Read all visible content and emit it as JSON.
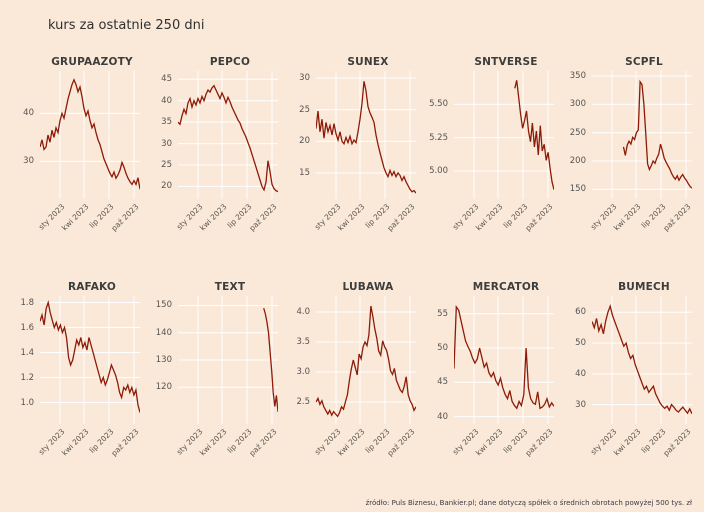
{
  "page": {
    "title": "kurs za ostatnie 250 dni",
    "footer": "źródło: Puls Biznesu, Bankier.pl; dane dotyczą spółek o średnich obrotach powyżej 500 tys. zł",
    "colors": {
      "background": "#FAE9D9",
      "line": "#8E1A08",
      "grid": "#FFFFFF",
      "title_text": "#30302F",
      "axis_text": "#555352"
    }
  },
  "chart_data": [
    {
      "type": "line",
      "title": "GRUPAAZOTY",
      "ylim": [
        23,
        48
      ],
      "yticks": [
        {
          "v": 30,
          "label": "30"
        },
        {
          "v": 40,
          "label": "40"
        }
      ],
      "xticks": [
        {
          "pos": 0.2,
          "label": "sty 2023"
        },
        {
          "pos": 0.44,
          "label": "kwi 2023"
        },
        {
          "pos": 0.69,
          "label": "lip 2023"
        },
        {
          "pos": 0.94,
          "label": "paź 2023"
        }
      ],
      "values": [
        33,
        34.5,
        32.5,
        33,
        35.5,
        34,
        36.5,
        35,
        37,
        36,
        38.5,
        40,
        39,
        41,
        43,
        44.5,
        46,
        47,
        46,
        44.5,
        45.5,
        43.5,
        41,
        39.5,
        40.5,
        38.5,
        37,
        37.8,
        36,
        34.5,
        33.5,
        32,
        30.5,
        29.5,
        28.5,
        27.5,
        26.8,
        27.8,
        26.5,
        27.2,
        28.2,
        29.8,
        28.8,
        27.5,
        26.5,
        25.8,
        25.2,
        26,
        25.2,
        26.6,
        24.2
      ]
    },
    {
      "type": "line",
      "title": "PEPCO",
      "ylim": [
        18,
        46
      ],
      "yticks": [
        {
          "v": 20,
          "label": "20"
        },
        {
          "v": 25,
          "label": "25"
        },
        {
          "v": 30,
          "label": "30"
        },
        {
          "v": 35,
          "label": "35"
        },
        {
          "v": 40,
          "label": "40"
        },
        {
          "v": 45,
          "label": "45"
        }
      ],
      "xticks": [
        {
          "pos": 0.2,
          "label": "sty 2023"
        },
        {
          "pos": 0.44,
          "label": "kwi 2023"
        },
        {
          "pos": 0.69,
          "label": "lip 2023"
        },
        {
          "pos": 0.94,
          "label": "paź 2023"
        }
      ],
      "values": [
        35,
        34.5,
        36.5,
        38,
        37,
        39.5,
        40.5,
        38.5,
        40,
        39,
        40.5,
        39.5,
        41,
        40,
        41.5,
        42.5,
        42,
        43,
        43.5,
        42.5,
        41.5,
        40.5,
        41.8,
        40.8,
        39.5,
        40.8,
        39.8,
        38.5,
        37.5,
        36.5,
        35.5,
        34.8,
        33.5,
        32.5,
        31.5,
        30.2,
        29,
        27.5,
        26,
        24.5,
        23,
        21.5,
        20,
        19.2,
        21,
        26,
        23.5,
        20.5,
        19.5,
        19,
        18.8
      ]
    },
    {
      "type": "line",
      "title": "SUNEX",
      "ylim": [
        11.5,
        30.5
      ],
      "yticks": [
        {
          "v": 15,
          "label": "15"
        },
        {
          "v": 20,
          "label": "20"
        },
        {
          "v": 25,
          "label": "25"
        },
        {
          "v": 30,
          "label": "30"
        }
      ],
      "xticks": [
        {
          "pos": 0.2,
          "label": "sty 2023"
        },
        {
          "pos": 0.44,
          "label": "kwi 2023"
        },
        {
          "pos": 0.69,
          "label": "lip 2023"
        },
        {
          "pos": 0.94,
          "label": "paź 2023"
        }
      ],
      "values": [
        22,
        24.8,
        21.5,
        23.5,
        20.5,
        23,
        21.5,
        22.5,
        21,
        22.8,
        21.2,
        20.2,
        21.5,
        20,
        19.6,
        20.6,
        19.8,
        20.8,
        19.6,
        20.2,
        19.8,
        21.5,
        23.5,
        26,
        29.5,
        28,
        25.5,
        24.5,
        23.8,
        23,
        21,
        19.5,
        18.2,
        17,
        15.8,
        15,
        14.4,
        15.4,
        14.6,
        15.2,
        14.4,
        15,
        14.6,
        13.8,
        14.4,
        13.6,
        13,
        12.4,
        12,
        12.2,
        11.8
      ]
    },
    {
      "type": "line",
      "title": "SNTVERSE",
      "ylim": [
        4.82,
        5.72
      ],
      "yticks": [
        {
          "v": 5.0,
          "label": "5.00"
        },
        {
          "v": 5.25,
          "label": "5.25"
        },
        {
          "v": 5.5,
          "label": "5.50"
        }
      ],
      "xticks": [
        {
          "pos": 0.2,
          "label": "sty 2023"
        },
        {
          "pos": 0.44,
          "label": "kwi 2023"
        },
        {
          "pos": 0.69,
          "label": "lip 2023"
        },
        {
          "pos": 0.94,
          "label": "paź 2023"
        }
      ],
      "values": [
        null,
        null,
        null,
        null,
        null,
        null,
        null,
        null,
        null,
        null,
        null,
        null,
        null,
        null,
        null,
        null,
        null,
        null,
        null,
        null,
        null,
        null,
        null,
        null,
        null,
        null,
        null,
        null,
        null,
        null,
        null,
        5.62,
        5.68,
        5.55,
        5.42,
        5.32,
        5.38,
        5.45,
        5.3,
        5.22,
        5.36,
        5.18,
        5.3,
        5.12,
        5.34,
        5.15,
        5.2,
        5.08,
        5.14,
        5.02,
        4.92,
        4.86
      ]
    },
    {
      "type": "line",
      "title": "SCPFL",
      "ylim": [
        140,
        352
      ],
      "yticks": [
        {
          "v": 150,
          "label": "150"
        },
        {
          "v": 200,
          "label": "200"
        },
        {
          "v": 250,
          "label": "250"
        },
        {
          "v": 300,
          "label": "300"
        },
        {
          "v": 350,
          "label": "350"
        }
      ],
      "xticks": [
        {
          "pos": 0.2,
          "label": "sty 2023"
        },
        {
          "pos": 0.44,
          "label": "kwi 2023"
        },
        {
          "pos": 0.69,
          "label": "lip 2023"
        },
        {
          "pos": 0.94,
          "label": "paź 2023"
        }
      ],
      "values": [
        null,
        null,
        null,
        null,
        null,
        null,
        null,
        null,
        null,
        null,
        null,
        null,
        null,
        null,
        null,
        null,
        null,
        225,
        210,
        228,
        235,
        230,
        242,
        238,
        250,
        255,
        340,
        335,
        300,
        250,
        195,
        185,
        192,
        200,
        196,
        205,
        212,
        230,
        218,
        205,
        198,
        192,
        186,
        178,
        172,
        168,
        174,
        166,
        172,
        176,
        170,
        166,
        160,
        155,
        152
      ]
    },
    {
      "type": "line",
      "title": "RAFAKO",
      "ylim": [
        0.86,
        1.82
      ],
      "yticks": [
        {
          "v": 1.0,
          "label": "1.0"
        },
        {
          "v": 1.2,
          "label": "1.2"
        },
        {
          "v": 1.4,
          "label": "1.4"
        },
        {
          "v": 1.6,
          "label": "1.6"
        },
        {
          "v": 1.8,
          "label": "1.8"
        }
      ],
      "xticks": [
        {
          "pos": 0.2,
          "label": "sty 2023"
        },
        {
          "pos": 0.44,
          "label": "kwi 2023"
        },
        {
          "pos": 0.69,
          "label": "lip 2023"
        },
        {
          "pos": 0.94,
          "label": "paź 2023"
        }
      ],
      "values": [
        1.65,
        1.7,
        1.62,
        1.75,
        1.8,
        1.72,
        1.66,
        1.6,
        1.64,
        1.58,
        1.62,
        1.56,
        1.6,
        1.52,
        1.36,
        1.3,
        1.34,
        1.42,
        1.5,
        1.46,
        1.52,
        1.44,
        1.48,
        1.42,
        1.52,
        1.46,
        1.4,
        1.34,
        1.28,
        1.22,
        1.16,
        1.2,
        1.14,
        1.18,
        1.24,
        1.3,
        1.26,
        1.22,
        1.16,
        1.08,
        1.04,
        1.12,
        1.1,
        1.14,
        1.08,
        1.12,
        1.06,
        1.1,
        0.98,
        0.92
      ]
    },
    {
      "type": "line",
      "title": "TEXT",
      "ylim": [
        108,
        152
      ],
      "yticks": [
        {
          "v": 120,
          "label": "120"
        },
        {
          "v": 130,
          "label": "130"
        },
        {
          "v": 140,
          "label": "140"
        },
        {
          "v": 150,
          "label": "150"
        }
      ],
      "xticks": [
        {
          "pos": 0.2,
          "label": "sty 2023"
        },
        {
          "pos": 0.44,
          "label": "kwi 2023"
        },
        {
          "pos": 0.69,
          "label": "lip 2023"
        },
        {
          "pos": 0.94,
          "label": "paź 2023"
        }
      ],
      "values": [
        null,
        null,
        null,
        null,
        null,
        null,
        null,
        null,
        null,
        null,
        null,
        null,
        null,
        null,
        null,
        null,
        null,
        null,
        null,
        null,
        null,
        null,
        null,
        null,
        null,
        null,
        null,
        null,
        null,
        null,
        null,
        null,
        null,
        null,
        null,
        null,
        null,
        null,
        null,
        null,
        null,
        null,
        null,
        null,
        null,
        null,
        null,
        null,
        null,
        null,
        null,
        null,
        null,
        null,
        149,
        147,
        144,
        140,
        133,
        126,
        118,
        113,
        117,
        111
      ]
    },
    {
      "type": "line",
      "title": "LUBAWA",
      "ylim": [
        2.2,
        4.2
      ],
      "yticks": [
        {
          "v": 2.5,
          "label": "2.5"
        },
        {
          "v": 3.0,
          "label": "3.0"
        },
        {
          "v": 3.5,
          "label": "3.5"
        },
        {
          "v": 4.0,
          "label": "4.0"
        }
      ],
      "xticks": [
        {
          "pos": 0.2,
          "label": "sty 2023"
        },
        {
          "pos": 0.44,
          "label": "kwi 2023"
        },
        {
          "pos": 0.69,
          "label": "lip 2023"
        },
        {
          "pos": 0.94,
          "label": "paź 2023"
        }
      ],
      "values": [
        2.5,
        2.56,
        2.46,
        2.52,
        2.42,
        2.36,
        2.3,
        2.36,
        2.28,
        2.34,
        2.3,
        2.26,
        2.32,
        2.42,
        2.38,
        2.5,
        2.62,
        2.85,
        3.05,
        3.2,
        3.08,
        2.95,
        3.3,
        3.22,
        3.42,
        3.5,
        3.44,
        3.62,
        4.1,
        3.92,
        3.72,
        3.56,
        3.35,
        3.28,
        3.52,
        3.42,
        3.36,
        3.22,
        3.02,
        2.96,
        3.06,
        2.86,
        2.78,
        2.7,
        2.66,
        2.76,
        2.92,
        2.62,
        2.52,
        2.46,
        2.36,
        2.42
      ]
    },
    {
      "type": "line",
      "title": "MERCATOR",
      "ylim": [
        39.5,
        57
      ],
      "yticks": [
        {
          "v": 40,
          "label": "40"
        },
        {
          "v": 45,
          "label": "45"
        },
        {
          "v": 50,
          "label": "50"
        },
        {
          "v": 55,
          "label": "55"
        }
      ],
      "xticks": [
        {
          "pos": 0.2,
          "label": "sty 2023"
        },
        {
          "pos": 0.44,
          "label": "kwi 2023"
        },
        {
          "pos": 0.69,
          "label": "lip 2023"
        },
        {
          "pos": 0.94,
          "label": "paź 2023"
        }
      ],
      "values": [
        47,
        56,
        55.5,
        54,
        52.5,
        51,
        50.2,
        49.5,
        48.5,
        47.8,
        48.4,
        50,
        48.6,
        47.2,
        47.8,
        46.4,
        45.8,
        46.4,
        45.2,
        44.6,
        45.6,
        44.2,
        43.2,
        42.6,
        43.8,
        42.2,
        41.6,
        41.2,
        42.2,
        41.6,
        43.2,
        50,
        44.2,
        42.6,
        42,
        41.8,
        43.6,
        41.2,
        41.4,
        41.8,
        42.6,
        41.4,
        42,
        41.5
      ]
    },
    {
      "type": "line",
      "title": "BUMECH",
      "ylim": [
        25,
        64
      ],
      "yticks": [
        {
          "v": 30,
          "label": "30"
        },
        {
          "v": 40,
          "label": "40"
        },
        {
          "v": 50,
          "label": "50"
        },
        {
          "v": 60,
          "label": "60"
        }
      ],
      "xticks": [
        {
          "pos": 0.2,
          "label": "sty 2023"
        },
        {
          "pos": 0.44,
          "label": "kwi 2023"
        },
        {
          "pos": 0.69,
          "label": "lip 2023"
        },
        {
          "pos": 0.94,
          "label": "paź 2023"
        }
      ],
      "values": [
        57,
        55,
        58,
        54,
        56,
        53,
        57,
        60,
        62,
        59,
        57,
        55,
        53,
        51,
        49,
        50,
        47,
        45,
        46,
        43,
        41,
        39,
        37,
        35,
        36,
        34,
        35,
        36,
        33.5,
        32,
        30.5,
        29.5,
        28.8,
        29.5,
        28.2,
        30,
        29.2,
        28.2,
        27.6,
        28.4,
        29.2,
        28.2,
        27.2,
        28.6,
        27
      ]
    }
  ]
}
